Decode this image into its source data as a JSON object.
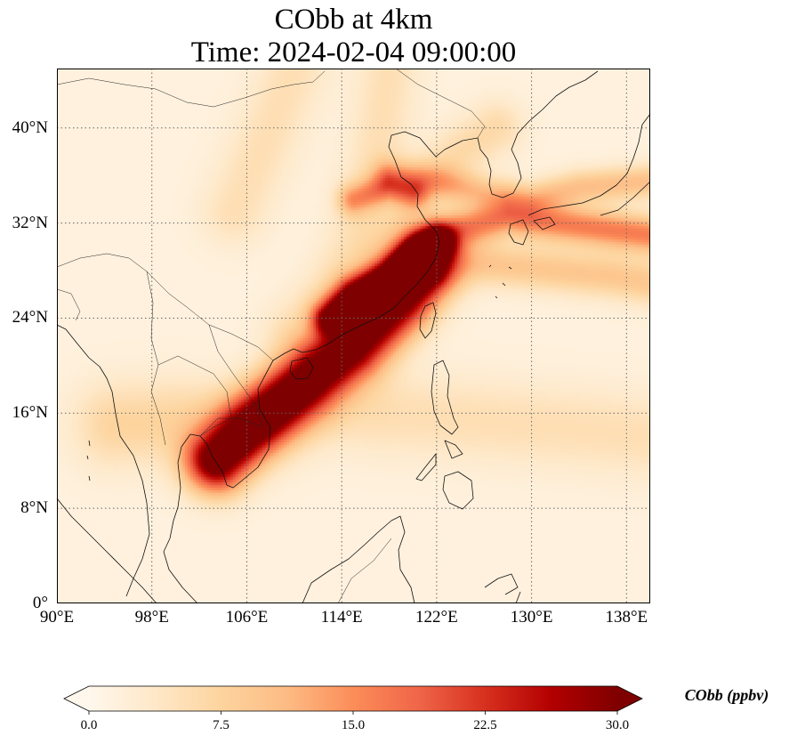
{
  "title": {
    "line1": "CObb at 4km",
    "line2": "Time: 2024-02-04 09:00:00"
  },
  "map": {
    "projection": "PlateCarree",
    "extent": {
      "lon": [
        90,
        140
      ],
      "lat": [
        0,
        45
      ]
    },
    "grid": "on (dotted)",
    "lon_ticks": [
      {
        "value": 90,
        "label": "90°E"
      },
      {
        "value": 98,
        "label": "98°E"
      },
      {
        "value": 106,
        "label": "106°E"
      },
      {
        "value": 114,
        "label": "114°E"
      },
      {
        "value": 122,
        "label": "122°E"
      },
      {
        "value": 130,
        "label": "130°E"
      },
      {
        "value": 138,
        "label": "138°E"
      }
    ],
    "lat_ticks": [
      {
        "value": 0,
        "label": "0°"
      },
      {
        "value": 8,
        "label": "8°N"
      },
      {
        "value": 16,
        "label": "16°N"
      },
      {
        "value": 24,
        "label": "24°N"
      },
      {
        "value": 32,
        "label": "32°N"
      },
      {
        "value": 40,
        "label": "40°N"
      }
    ],
    "field": "CObb",
    "background_value": 1.5,
    "plumes": [
      {
        "path": [
          [
            103.5,
            12
          ],
          [
            106,
            14.5
          ],
          [
            109,
            17
          ],
          [
            112,
            19.5
          ],
          [
            115,
            21.5
          ],
          [
            117,
            23.5
          ],
          [
            119,
            25.5
          ],
          [
            121,
            28
          ]
        ],
        "peak": 32,
        "width_deg": 1.8
      },
      {
        "path": [
          [
            113,
            24
          ],
          [
            115,
            26
          ],
          [
            118,
            27.5
          ],
          [
            120,
            29
          ],
          [
            122,
            30.5
          ]
        ],
        "peak": 24,
        "width_deg": 1.0
      },
      {
        "path": [
          [
            95,
            15
          ],
          [
            100,
            15.3
          ],
          [
            104,
            15
          ],
          [
            108,
            15.5
          ],
          [
            112,
            17
          ]
        ],
        "peak": 6,
        "width_deg": 2.5
      },
      {
        "path": [
          [
            121,
            30
          ],
          [
            124,
            31.5
          ],
          [
            128,
            32.5
          ],
          [
            132,
            32
          ],
          [
            136,
            31.5
          ],
          [
            140,
            31
          ]
        ],
        "peak": 15,
        "width_deg": 1.1
      },
      {
        "path": [
          [
            118,
            36
          ],
          [
            122,
            35.5
          ],
          [
            126,
            34.5
          ],
          [
            130,
            34
          ],
          [
            134,
            35
          ],
          [
            140,
            35.5
          ]
        ],
        "peak": 9,
        "width_deg": 1.0
      },
      {
        "path": [
          [
            115,
            34
          ],
          [
            118,
            35
          ],
          [
            120,
            34.5
          ]
        ],
        "peak": 11,
        "width_deg": 0.9
      },
      {
        "path": [
          [
            120,
            28
          ],
          [
            123,
            29
          ],
          [
            127,
            28.5
          ],
          [
            132,
            28
          ],
          [
            137,
            27.5
          ],
          [
            140,
            27
          ]
        ],
        "peak": 8,
        "width_deg": 1.3
      },
      {
        "path": [
          [
            114,
            24.5
          ],
          [
            117,
            27.5
          ],
          [
            119,
            31
          ],
          [
            121,
            35
          ],
          [
            124,
            38
          ],
          [
            127,
            40
          ]
        ],
        "peak": 5,
        "width_deg": 1.6
      },
      {
        "path": [
          [
            110,
            23
          ],
          [
            113,
            26
          ],
          [
            115,
            30
          ],
          [
            116,
            34
          ],
          [
            117,
            38
          ],
          [
            118,
            45
          ]
        ],
        "peak": 4,
        "width_deg": 1.8
      },
      {
        "path": [
          [
            118,
            16
          ],
          [
            124,
            15.5
          ],
          [
            130,
            15
          ],
          [
            136,
            14.5
          ],
          [
            140,
            14
          ]
        ],
        "peak": 4,
        "width_deg": 2.5
      },
      {
        "path": [
          [
            105,
            33
          ],
          [
            108,
            40
          ],
          [
            110,
            45
          ]
        ],
        "peak": 4,
        "width_deg": 2.0
      }
    ]
  },
  "colorbar": {
    "label": "CObb (ppbv)",
    "min": 0,
    "max": 30,
    "extend": "both",
    "colormap": "OrRd",
    "colors": [
      "#fff7ec",
      "#fee8c8",
      "#fdd49e",
      "#fdbb84",
      "#fc8d59",
      "#ef6548",
      "#d7301f",
      "#b30000",
      "#7f0000"
    ],
    "ticks": [
      {
        "value": 0,
        "label": "0.0"
      },
      {
        "value": 7.5,
        "label": "7.5"
      },
      {
        "value": 15,
        "label": "15.0"
      },
      {
        "value": 22.5,
        "label": "22.5"
      },
      {
        "value": 30,
        "label": "30.0"
      }
    ]
  }
}
